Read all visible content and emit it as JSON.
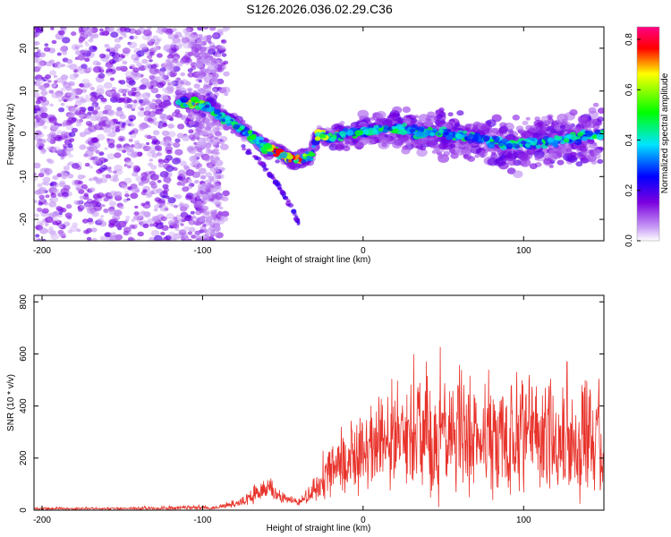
{
  "figure": {
    "title": "S126.2026.036.02.29.C36"
  },
  "chart_data": [
    {
      "type": "heatmap",
      "xlabel": "Height of straight line (km)",
      "ylabel": "Frequency (Hz)",
      "xlim": [
        -205,
        150
      ],
      "ylim": [
        -25,
        25
      ],
      "xticks": [
        -200,
        -100,
        0,
        100
      ],
      "yticks": [
        -20,
        -10,
        0,
        10,
        20
      ],
      "grid": false,
      "colorbar": {
        "label": "Normalized spectral amplitude",
        "range": [
          0.0,
          0.85
        ],
        "ticks": [
          0.0,
          0.2,
          0.4,
          0.6,
          0.8
        ],
        "colors": [
          "#ffffff",
          "#8a2be2",
          "#0000ff",
          "#00ffff",
          "#00ff00",
          "#ffff00",
          "#ff0000",
          "#ff0088"
        ]
      },
      "ridge": {
        "x": [
          -115,
          -105,
          -95,
          -85,
          -75,
          -65,
          -55,
          -45,
          -38,
          -32,
          -28,
          -20,
          -10,
          0,
          10,
          20,
          30,
          50,
          70,
          90,
          110,
          130,
          150
        ],
        "y": [
          7.5,
          7,
          6,
          3,
          1,
          -2,
          -4,
          -6,
          -6,
          -5,
          0,
          -1,
          0,
          0.5,
          1,
          1.5,
          0.5,
          0,
          -1,
          -2.5,
          -2,
          -1,
          0
        ]
      },
      "branch": {
        "x": [
          -75,
          -65,
          -55,
          -45,
          -40
        ],
        "y": [
          -3,
          -6,
          -11,
          -17,
          -21
        ]
      }
    },
    {
      "type": "line",
      "xlabel": "Height of straight line (km)",
      "ylabel": "SNR (10 * v/v)",
      "xlim": [
        -205,
        150
      ],
      "ylim": [
        0,
        825
      ],
      "xticks": [
        -200,
        -100,
        0,
        100
      ],
      "yticks": [
        0,
        200,
        400,
        600,
        800
      ],
      "grid": false,
      "series": [
        {
          "color": "#e8332b",
          "envelope": {
            "x": [
              -205,
              -150,
              -100,
              -95,
              -80,
              -70,
              -60,
              -55,
              -50,
              -40,
              -30,
              -20,
              -10,
              0,
              10,
              20,
              30,
              40,
              50,
              60,
              70,
              80,
              90,
              100,
              110,
              120,
              130,
              140,
              150
            ],
            "base": [
              5,
              5,
              8,
              6,
              20,
              40,
              80,
              60,
              40,
              30,
              60,
              120,
              160,
              180,
              200,
              200,
              220,
              230,
              240,
              240,
              230,
              240,
              230,
              240,
              230,
              230,
              220,
              210,
              220
            ],
            "amp": [
              10,
              10,
              20,
              10,
              30,
              60,
              110,
              60,
              40,
              30,
              120,
              250,
              280,
              300,
              350,
              450,
              500,
              550,
              600,
              500,
              500,
              500,
              480,
              500,
              520,
              500,
              480,
              520,
              450
            ]
          }
        }
      ]
    }
  ]
}
